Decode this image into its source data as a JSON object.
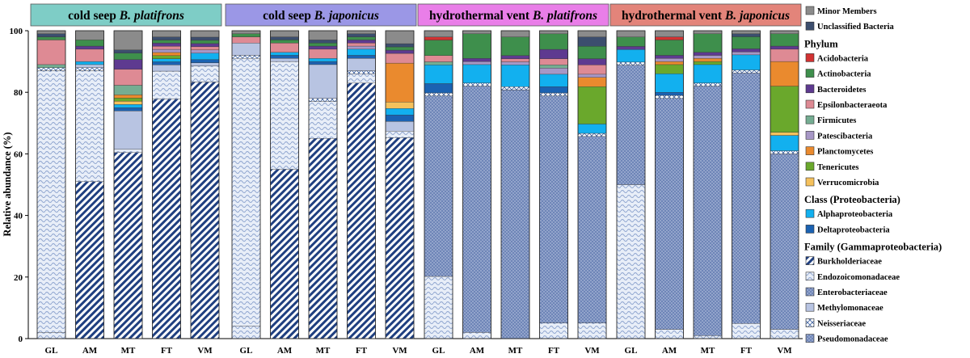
{
  "chart_data": {
    "type": "bar",
    "stacked": true,
    "ylabel": "Relative abundance (%)",
    "ylim": [
      0,
      100
    ],
    "yticks": [
      0,
      20,
      40,
      60,
      80,
      100
    ],
    "panel_colors": [
      "#7ecdc6",
      "#9b97e6",
      "#e97ee8",
      "#e3847a"
    ],
    "panels": [
      {
        "title_plain": "cold seep ",
        "title_italic": "B. platifrons",
        "categories": [
          "GL",
          "AM",
          "MT",
          "FT",
          "VM"
        ]
      },
      {
        "title_plain": "cold seep ",
        "title_italic": "B. japonicus",
        "categories": [
          "GL",
          "AM",
          "MT",
          "FT",
          "VM"
        ]
      },
      {
        "title_plain": "hydrothermal vent ",
        "title_italic": "B. platifrons",
        "categories": [
          "GL",
          "AM",
          "MT",
          "FT",
          "VM"
        ]
      },
      {
        "title_plain": "hydrothermal vent ",
        "title_italic": "B. japonicus",
        "categories": [
          "GL",
          "AM",
          "MT",
          "FT",
          "VM"
        ]
      }
    ],
    "series": [
      {
        "name": "Pseudomonadaceae",
        "group": "family",
        "color": "#ffffff",
        "pattern": "pattern-dots",
        "values": [
          0,
          0,
          0,
          0,
          0,
          0,
          0,
          0,
          0,
          0,
          0,
          0,
          0,
          0,
          0,
          0,
          0,
          0,
          0,
          0
        ]
      },
      {
        "name": "Neisseriaceae",
        "group": "family",
        "color": "#1f3f80",
        "pattern": "pattern-grid",
        "values": [
          0,
          0,
          0,
          0,
          0,
          0,
          0,
          0,
          0,
          0,
          0,
          0,
          0,
          0,
          0,
          0,
          0,
          0,
          0,
          0
        ]
      },
      {
        "name": "Methylomonaceae",
        "group": "family",
        "color": "#b8c4e2",
        "pattern": "none",
        "values": [
          0,
          0,
          0,
          0,
          0,
          0,
          0,
          0,
          0,
          0,
          0,
          0,
          0,
          0,
          0,
          0,
          0,
          0,
          0,
          0
        ]
      },
      {
        "name": "Endozoicomonadaceae",
        "group": "family",
        "color": "#b9cae6",
        "pattern": "pattern-wave",
        "values": [
          2,
          0,
          0,
          0,
          0,
          4,
          0,
          0,
          0,
          0,
          20,
          2,
          0,
          5,
          5,
          49,
          3,
          1,
          5,
          3
        ]
      },
      {
        "name": "Enterobacteriaceae",
        "group": "family",
        "color": "#6e85b7",
        "pattern": "pattern-dots",
        "values": [
          0,
          0,
          0,
          0,
          0,
          0,
          0,
          0,
          0,
          0,
          58,
          80,
          80,
          73,
          60,
          38,
          75,
          81,
          83,
          57
        ]
      },
      {
        "name": "Burkholderiaceae",
        "group": "family",
        "color": "#1f3f80",
        "pattern": "pattern-diag",
        "values": [
          0,
          51,
          58,
          77,
          80,
          0,
          55,
          65,
          83,
          62,
          0,
          0,
          0,
          0,
          0,
          0,
          0,
          0,
          0,
          0
        ]
      },
      {
        "name": "Endozoicomonadaceae (cold seep)",
        "group": "family",
        "color": "#b9cae6",
        "pattern": "pattern-wave",
        "values": [
          85,
          36,
          1,
          9,
          5,
          87,
          35,
          12,
          3,
          2,
          0,
          0,
          0,
          0,
          0,
          0,
          0,
          0,
          0,
          0
        ]
      },
      {
        "name": "Neisseriaceae (cold seep)",
        "group": "family",
        "color": "#1f3f80",
        "pattern": "pattern-grid",
        "values": [
          1,
          1,
          0,
          0,
          0,
          1,
          0,
          1,
          1,
          0,
          1,
          1,
          1,
          1,
          1,
          1,
          1,
          1,
          1,
          1
        ]
      },
      {
        "name": "Methylomonaceae (cold seep)",
        "group": "family",
        "color": "#b8c4e2",
        "pattern": "none",
        "values": [
          0,
          1,
          12,
          2,
          1,
          4,
          1,
          11,
          4,
          3,
          0,
          0,
          0,
          0,
          0,
          0,
          0,
          0,
          0,
          0
        ]
      },
      {
        "name": "Deltaproteobacteria",
        "group": "class",
        "color": "#1b62b2",
        "pattern": "none",
        "values": [
          0,
          0,
          1,
          1,
          1,
          0,
          1,
          1,
          1,
          2,
          3,
          0,
          0,
          2,
          0,
          0,
          1,
          0,
          0,
          0
        ]
      },
      {
        "name": "Alphaproteobacteria",
        "group": "class",
        "color": "#12b0ef",
        "pattern": "none",
        "values": [
          0,
          1,
          1,
          1,
          2,
          0,
          1,
          1,
          2,
          2,
          6,
          6,
          7,
          4,
          3,
          4,
          6,
          6,
          5,
          5
        ]
      },
      {
        "name": "Verrucomicrobia",
        "group": "phylum",
        "color": "#f5c15c",
        "pattern": "none",
        "values": [
          0,
          0,
          1,
          0,
          0,
          0,
          0,
          0,
          0,
          2,
          0,
          0,
          0,
          0,
          0,
          0,
          0,
          0,
          0,
          1
        ]
      },
      {
        "name": "Tenericutes",
        "group": "phylum",
        "color": "#6aa82c",
        "pattern": "none",
        "values": [
          0,
          0,
          1,
          1,
          0,
          0,
          0,
          0,
          0,
          0,
          0,
          0,
          0,
          0,
          12,
          0,
          3,
          1,
          0,
          15
        ]
      },
      {
        "name": "Planctomycetes",
        "group": "phylum",
        "color": "#ea8a2e",
        "pattern": "none",
        "values": [
          0,
          0,
          1,
          1,
          0,
          0,
          0,
          0,
          0,
          12,
          0,
          0,
          0,
          0,
          3,
          0,
          1,
          1,
          0,
          8
        ]
      },
      {
        "name": "Patescibacteria",
        "group": "phylum",
        "color": "#a797c6",
        "pattern": "none",
        "values": [
          0,
          0,
          0,
          1,
          1,
          0,
          0,
          0,
          1,
          0,
          0,
          1,
          1,
          2,
          1,
          0,
          1,
          1,
          1,
          0
        ]
      },
      {
        "name": "Firmicutes",
        "group": "phylum",
        "color": "#75ad92",
        "pattern": "none",
        "values": [
          1,
          0,
          3,
          0,
          0,
          0,
          0,
          0,
          0,
          0,
          1,
          0,
          0,
          1,
          0,
          0,
          0,
          0,
          0,
          0
        ]
      },
      {
        "name": "Epsilonbacteraeota",
        "group": "phylum",
        "color": "#de8a94",
        "pattern": "none",
        "values": [
          8,
          4,
          5,
          1,
          1,
          2,
          3,
          3,
          1,
          3,
          2,
          0,
          1,
          2,
          3,
          0,
          0,
          0,
          0,
          4
        ]
      },
      {
        "name": "Bacteroidetes",
        "group": "phylum",
        "color": "#5e3a90",
        "pattern": "none",
        "values": [
          0,
          1,
          3,
          1,
          1,
          0,
          0,
          1,
          1,
          1,
          0,
          1,
          1,
          3,
          2,
          1,
          1,
          1,
          1,
          1
        ]
      },
      {
        "name": "Actinobacteria",
        "group": "phylum",
        "color": "#3e8f4c",
        "pattern": "none",
        "values": [
          1,
          2,
          2,
          1,
          1,
          1,
          1,
          1,
          1,
          1,
          5,
          8,
          6,
          5,
          4,
          3,
          5,
          6,
          4,
          4
        ]
      },
      {
        "name": "Acidobacteria",
        "group": "phylum",
        "color": "#d23232",
        "pattern": "none",
        "values": [
          0,
          0,
          0,
          0,
          0,
          0,
          0,
          0,
          0,
          0,
          1,
          0,
          0,
          0,
          0,
          0,
          1,
          0,
          0,
          0
        ]
      },
      {
        "name": "Unclassified Bacteria",
        "group": "other",
        "color": "#3c4e6e",
        "pattern": "none",
        "values": [
          1,
          0,
          1,
          1,
          1,
          0,
          1,
          1,
          1,
          1,
          0,
          0,
          0,
          0,
          3,
          0,
          0,
          0,
          1,
          0
        ]
      },
      {
        "name": "Minor Members",
        "group": "other",
        "color": "#8b8b8b",
        "pattern": "none",
        "values": [
          1,
          3,
          6,
          2,
          2,
          1,
          2,
          3,
          1,
          4,
          2,
          1,
          2,
          1,
          2,
          2,
          2,
          1,
          1,
          1
        ]
      }
    ],
    "legend": [
      {
        "label": "Minor Members",
        "color": "#8b8b8b",
        "pattern": "none"
      },
      {
        "label": "Unclassified Bacteria",
        "color": "#3c4e6e",
        "pattern": "none"
      },
      {
        "heading": "Phylum"
      },
      {
        "label": "Acidobacteria",
        "color": "#d23232",
        "pattern": "none"
      },
      {
        "label": "Actinobacteria",
        "color": "#3e8f4c",
        "pattern": "none"
      },
      {
        "label": "Bacteroidetes",
        "color": "#5e3a90",
        "pattern": "none"
      },
      {
        "label": "Epsilonbacteraeota",
        "color": "#de8a94",
        "pattern": "none"
      },
      {
        "label": "Firmicutes",
        "color": "#75ad92",
        "pattern": "none"
      },
      {
        "label": "Patescibacteria",
        "color": "#a797c6",
        "pattern": "none"
      },
      {
        "label": "Planctomycetes",
        "color": "#ea8a2e",
        "pattern": "none"
      },
      {
        "label": "Tenericutes",
        "color": "#6aa82c",
        "pattern": "none"
      },
      {
        "label": "Verrucomicrobia",
        "color": "#f5c15c",
        "pattern": "none"
      },
      {
        "heading": "Class (Proteobacteria)"
      },
      {
        "label": "Alphaproteobacteria",
        "color": "#12b0ef",
        "pattern": "none"
      },
      {
        "label": "Deltaproteobacteria",
        "color": "#1b62b2",
        "pattern": "none"
      },
      {
        "heading": "Family (Gammaproteobacteria)"
      },
      {
        "label": "Burkholderiaceae",
        "color": "#1f3f80",
        "pattern": "pattern-diag"
      },
      {
        "label": "Endozoicomonadaceae",
        "color": "#b9cae6",
        "pattern": "pattern-wave"
      },
      {
        "label": "Enterobacteriaceae",
        "color": "#6e85b7",
        "pattern": "pattern-dots"
      },
      {
        "label": "Methylomonaceae",
        "color": "#b8c4e2",
        "pattern": "none"
      },
      {
        "label": "Neisseriaceae",
        "color": "#1f3f80",
        "pattern": "pattern-grid"
      },
      {
        "label": "Pseudomonadaceae",
        "color": "#ffffff",
        "pattern": "pattern-dots"
      }
    ]
  }
}
